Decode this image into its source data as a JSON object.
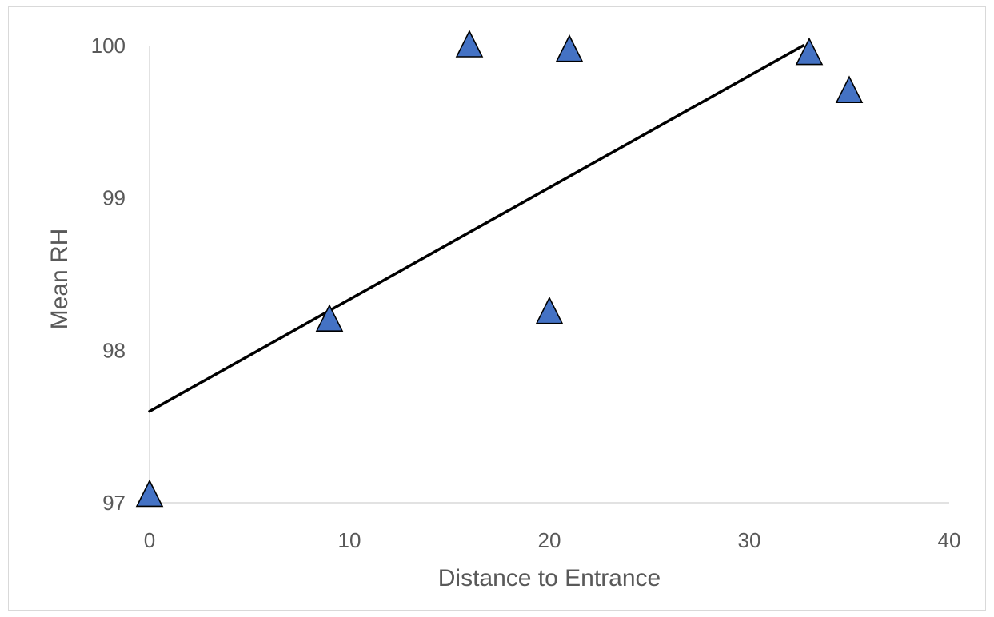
{
  "chart_data": {
    "type": "scatter",
    "title": "",
    "xlabel": "Distance to Entrance",
    "ylabel": "Mean RH",
    "xlim": [
      0,
      40
    ],
    "ylim": [
      97,
      100
    ],
    "x_ticks": [
      "0",
      "10",
      "20",
      "30",
      "40"
    ],
    "y_ticks": [
      "97",
      "98",
      "99",
      "100"
    ],
    "grid": false,
    "legend": "none",
    "series": [
      {
        "marker": "triangle",
        "color": "#4472C4",
        "points": [
          {
            "x": 0,
            "y": 97.05
          },
          {
            "x": 9,
            "y": 98.2
          },
          {
            "x": 16,
            "y": 100.0
          },
          {
            "x": 20,
            "y": 98.25
          },
          {
            "x": 21,
            "y": 99.97
          },
          {
            "x": 33,
            "y": 99.95
          },
          {
            "x": 35,
            "y": 99.7
          }
        ]
      }
    ],
    "trendline": {
      "type": "linear",
      "color": "#000000",
      "x": [
        0,
        32.7
      ],
      "y": [
        97.6,
        100.0
      ]
    }
  }
}
